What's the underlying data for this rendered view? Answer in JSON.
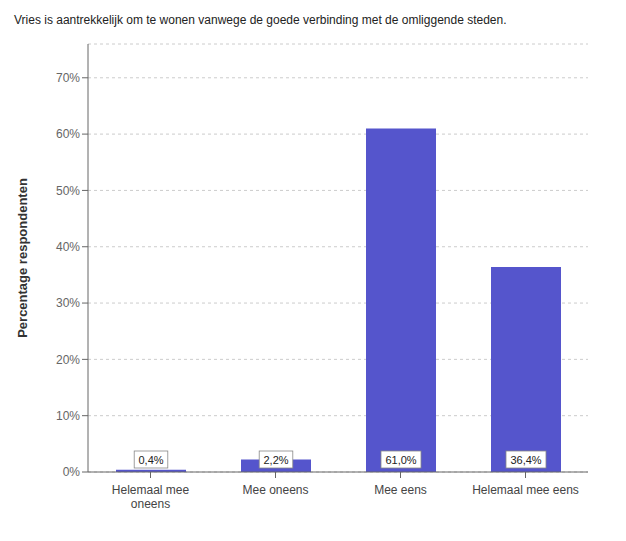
{
  "chart_data": {
    "type": "bar",
    "title": "Vries is aantrekkelijk om te wonen vanwege de goede verbinding met de omliggende steden.",
    "categories": [
      "Helemaal mee\noneens",
      "Mee oneens",
      "Mee eens",
      "Helemaal mee eens"
    ],
    "values": [
      0.4,
      2.2,
      61.0,
      36.4
    ],
    "value_labels": [
      "0,4%",
      "2,2%",
      "61,0%",
      "36,4%"
    ],
    "data_labels": true,
    "color": "#5555cc",
    "ylabel": "Percentage respondenten",
    "ylim": [
      0,
      76
    ],
    "yticks": [
      {
        "value": 0,
        "label": "0%"
      },
      {
        "value": 10,
        "label": "10%"
      },
      {
        "value": 20,
        "label": "20%"
      },
      {
        "value": 30,
        "label": "30%"
      },
      {
        "value": 40,
        "label": "40%"
      },
      {
        "value": 50,
        "label": "50%"
      },
      {
        "value": 60,
        "label": "60%"
      },
      {
        "value": 70,
        "label": "70%"
      }
    ],
    "grid": true
  }
}
